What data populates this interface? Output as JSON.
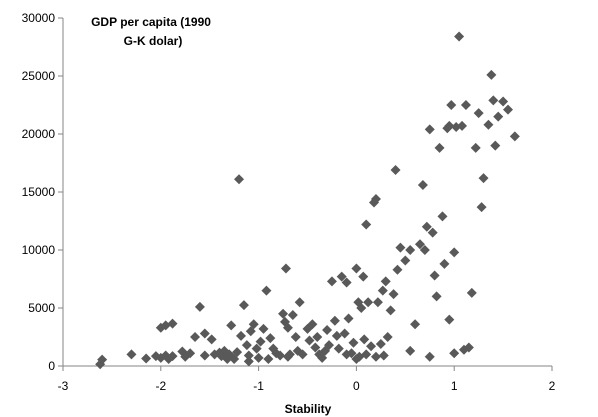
{
  "chart_data": {
    "type": "scatter",
    "title": "",
    "xlabel": "Stability",
    "ylabel": "",
    "annotation_lines": [
      "GDP per capita (1990",
      "G-K dolar)"
    ],
    "xlim": [
      -3,
      2
    ],
    "ylim": [
      0,
      30000
    ],
    "x_ticks": [
      -3,
      -2,
      -1,
      0,
      1,
      2
    ],
    "x_tick_labels": [
      "-3",
      "-2",
      "-1",
      "0",
      "1",
      "2"
    ],
    "y_ticks": [
      0,
      5000,
      10000,
      15000,
      20000,
      25000,
      30000
    ],
    "y_tick_labels": [
      "0",
      "5000",
      "10000",
      "15000",
      "20000",
      "25000",
      "30000"
    ],
    "grid": false,
    "legend": "none",
    "marker": "diamond",
    "marker_color": "#595959",
    "series": [
      {
        "points": [
          [
            -2.62,
            150
          ],
          [
            -2.6,
            550
          ],
          [
            -2.3,
            1000
          ],
          [
            -2.15,
            650
          ],
          [
            -2.05,
            850
          ],
          [
            -2.0,
            700
          ],
          [
            -1.95,
            900
          ],
          [
            -1.92,
            600
          ],
          [
            -1.88,
            850
          ],
          [
            -2.0,
            3300
          ],
          [
            -1.95,
            3500
          ],
          [
            -1.88,
            3650
          ],
          [
            -1.78,
            1250
          ],
          [
            -1.75,
            800
          ],
          [
            -1.7,
            1100
          ],
          [
            -1.65,
            2500
          ],
          [
            -1.6,
            5100
          ],
          [
            -1.55,
            2800
          ],
          [
            -1.55,
            900
          ],
          [
            -1.48,
            2300
          ],
          [
            -1.45,
            1000
          ],
          [
            -1.4,
            1150
          ],
          [
            -1.38,
            850
          ],
          [
            -1.35,
            1300
          ],
          [
            -1.32,
            600
          ],
          [
            -1.3,
            1000
          ],
          [
            -1.28,
            3500
          ],
          [
            -1.25,
            600
          ],
          [
            -1.22,
            1200
          ],
          [
            -1.2,
            16100
          ],
          [
            -1.18,
            2600
          ],
          [
            -1.15,
            5250
          ],
          [
            -1.12,
            1800
          ],
          [
            -1.1,
            900
          ],
          [
            -1.08,
            3000
          ],
          [
            -1.05,
            3600
          ],
          [
            -1.02,
            1500
          ],
          [
            -1.0,
            700
          ],
          [
            -0.98,
            2100
          ],
          [
            -0.95,
            3200
          ],
          [
            -0.92,
            6500
          ],
          [
            -0.88,
            2400
          ],
          [
            -0.85,
            1500
          ],
          [
            -0.82,
            1100
          ],
          [
            -0.78,
            900
          ],
          [
            -0.75,
            4500
          ],
          [
            -0.73,
            3800
          ],
          [
            -0.72,
            8400
          ],
          [
            -0.7,
            3300
          ],
          [
            -0.68,
            1000
          ],
          [
            -0.65,
            4400
          ],
          [
            -0.62,
            2500
          ],
          [
            -0.6,
            1300
          ],
          [
            -0.58,
            5500
          ],
          [
            -0.55,
            1000
          ],
          [
            -0.5,
            3200
          ],
          [
            -0.48,
            2200
          ],
          [
            -0.45,
            3600
          ],
          [
            -0.42,
            1600
          ],
          [
            -0.4,
            2500
          ],
          [
            -0.38,
            1000
          ],
          [
            -0.35,
            700
          ],
          [
            -0.32,
            1300
          ],
          [
            -0.3,
            3100
          ],
          [
            -0.28,
            1800
          ],
          [
            -0.25,
            7300
          ],
          [
            -0.22,
            3900
          ],
          [
            -0.2,
            2600
          ],
          [
            -0.18,
            1500
          ],
          [
            -0.15,
            7700
          ],
          [
            -0.12,
            2800
          ],
          [
            -0.1,
            7200
          ],
          [
            -0.08,
            4100
          ],
          [
            -0.05,
            1100
          ],
          [
            -0.03,
            2000
          ],
          [
            0.0,
            8400
          ],
          [
            0.02,
            5500
          ],
          [
            0.03,
            800
          ],
          [
            0.05,
            5000
          ],
          [
            0.07,
            7700
          ],
          [
            0.08,
            2300
          ],
          [
            0.1,
            12200
          ],
          [
            0.12,
            5500
          ],
          [
            0.15,
            1700
          ],
          [
            0.18,
            14100
          ],
          [
            0.2,
            14400
          ],
          [
            0.22,
            5500
          ],
          [
            0.25,
            1900
          ],
          [
            0.27,
            6500
          ],
          [
            0.3,
            7300
          ],
          [
            0.32,
            2500
          ],
          [
            0.35,
            4800
          ],
          [
            0.38,
            6200
          ],
          [
            0.4,
            16900
          ],
          [
            0.42,
            8300
          ],
          [
            0.45,
            10200
          ],
          [
            0.5,
            9100
          ],
          [
            0.55,
            10000
          ],
          [
            0.6,
            3600
          ],
          [
            0.65,
            10500
          ],
          [
            0.68,
            15600
          ],
          [
            0.7,
            10000
          ],
          [
            0.72,
            12000
          ],
          [
            0.75,
            20400
          ],
          [
            0.78,
            11500
          ],
          [
            0.8,
            7800
          ],
          [
            0.82,
            6000
          ],
          [
            0.85,
            18800
          ],
          [
            0.88,
            12900
          ],
          [
            0.9,
            8800
          ],
          [
            0.93,
            20500
          ],
          [
            0.95,
            20700
          ],
          [
            0.97,
            22500
          ],
          [
            1.0,
            9800
          ],
          [
            1.02,
            20600
          ],
          [
            1.05,
            28400
          ],
          [
            1.08,
            20700
          ],
          [
            1.1,
            1400
          ],
          [
            1.12,
            22500
          ],
          [
            1.15,
            1600
          ],
          [
            1.18,
            6300
          ],
          [
            1.22,
            18800
          ],
          [
            1.25,
            21800
          ],
          [
            1.28,
            13700
          ],
          [
            1.3,
            16200
          ],
          [
            1.35,
            20800
          ],
          [
            1.38,
            25100
          ],
          [
            1.4,
            22900
          ],
          [
            1.42,
            19000
          ],
          [
            1.45,
            21500
          ],
          [
            1.5,
            22800
          ],
          [
            1.55,
            22100
          ],
          [
            1.62,
            19800
          ],
          [
            0.95,
            4000
          ],
          [
            0.55,
            1300
          ],
          [
            0.75,
            800
          ],
          [
            1.0,
            1100
          ],
          [
            0.0,
            600
          ],
          [
            -0.1,
            1000
          ],
          [
            0.1,
            1000
          ],
          [
            0.2,
            800
          ],
          [
            0.28,
            900
          ],
          [
            -0.7,
            800
          ],
          [
            -0.9,
            600
          ],
          [
            -1.1,
            400
          ]
        ]
      }
    ]
  }
}
